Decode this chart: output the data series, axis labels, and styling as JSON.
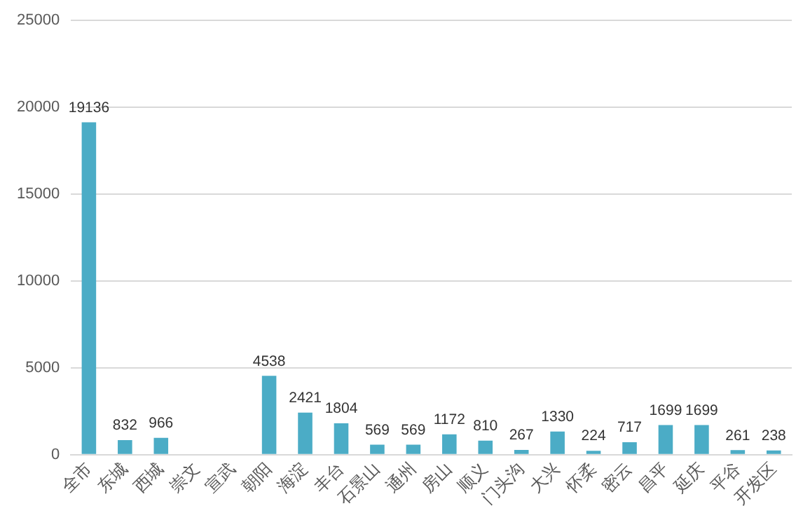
{
  "chart_data": {
    "type": "bar",
    "categories": [
      "全市",
      "东城",
      "西城",
      "崇文",
      "宣武",
      "朝阳",
      "海淀",
      "丰台",
      "石景山",
      "通州",
      "房山",
      "顺义",
      "门头沟",
      "大兴",
      "怀柔",
      "密云",
      "昌平",
      "延庆",
      "平谷",
      "开发区"
    ],
    "values": [
      19136,
      832,
      966,
      null,
      null,
      4538,
      2421,
      1804,
      569,
      569,
      1172,
      810,
      267,
      1330,
      224,
      717,
      1699,
      1699,
      261,
      238
    ],
    "color": "#4bacc6",
    "ylim": [
      0,
      25000
    ],
    "yticks": [
      0,
      5000,
      10000,
      15000,
      20000,
      25000
    ],
    "grid": "y",
    "data_labels": true
  }
}
